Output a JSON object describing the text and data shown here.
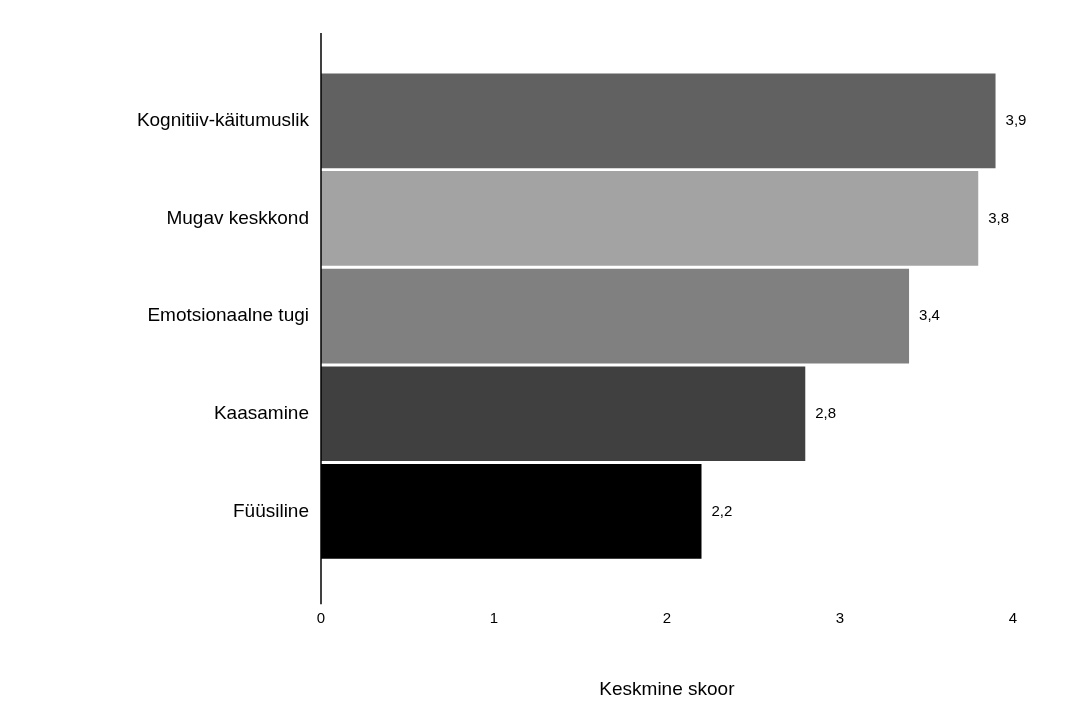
{
  "chart_data": {
    "type": "bar",
    "orientation": "horizontal",
    "xlabel": "Keskmine skoor",
    "categories": [
      "Kognitiiv-käitumuslik",
      "Mugav keskkond",
      "Emotsionaalne tugi",
      "Kaasamine",
      "Füüsiline"
    ],
    "values": [
      3.9,
      3.8,
      3.4,
      2.8,
      2.2
    ],
    "colors": [
      "#616161",
      "#a3a3a3",
      "#808080",
      "#404040",
      "#000000"
    ],
    "value_labels": [
      "3,9",
      "3,8",
      "3,4",
      "2,8",
      "2,2"
    ],
    "xlim": [
      0,
      4
    ],
    "xticks": [
      0,
      1,
      2,
      3,
      4
    ],
    "grid": false,
    "legend": false
  }
}
